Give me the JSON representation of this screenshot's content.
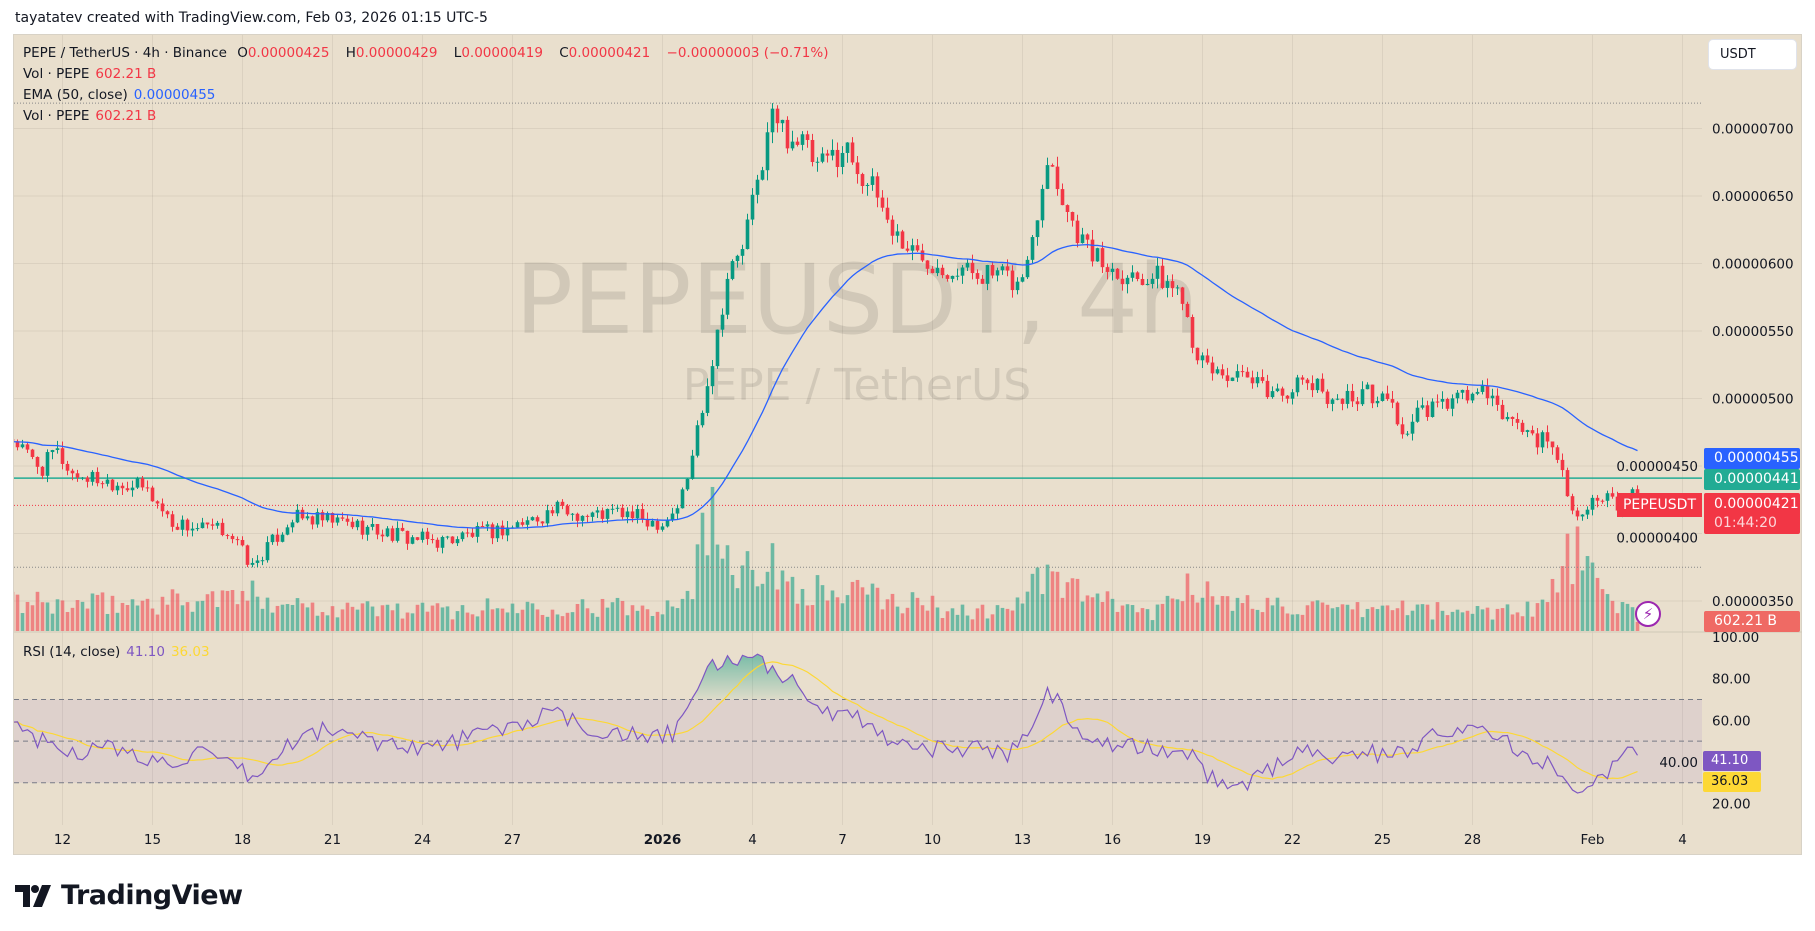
{
  "credit": "tayatatev created with TradingView.com, Feb 03, 2026 01:15 UTC-5",
  "legend": {
    "symbol": "PEPE / TetherUS · 4h · Binance",
    "o_label": "O",
    "o": "0.00000425",
    "h_label": "H",
    "h": "0.00000429",
    "l_label": "L",
    "l": "0.00000419",
    "c_label": "C",
    "c": "0.00000421",
    "change": "−0.00000003 (−0.71%)",
    "vol1_label": "Vol · PEPE",
    "vol1": "602.21 B",
    "ema_label": "EMA (50, close)",
    "ema": "0.00000455",
    "vol2_label": "Vol · PEPE",
    "vol2": "602.21 B",
    "rsi_label": "RSI (14, close)",
    "rsi": "41.10",
    "rsi_ma": "36.03"
  },
  "currency_button": "USDT",
  "watermark": {
    "title": "PEPEUSDT, 4h",
    "subtitle": "PEPE / TetherUS"
  },
  "tags": {
    "ema": "0.00000455",
    "line": "0.00000441",
    "price": "0.00000421",
    "countdown": "01:44:20",
    "symbol": "PEPEUSDT",
    "volume": "602.21 B"
  },
  "logo": "TradingView",
  "colors": {
    "up": "#089981",
    "down": "#f23645",
    "ema": "#2962ff",
    "hline": "#22ab94",
    "rsi": "#7e57c2",
    "rsi_ma": "#fdd835",
    "background": "#e9dfcd"
  },
  "icons": {
    "lightning": "lightning-icon",
    "logo": "tradingview-logo-icon"
  },
  "chart_data": [
    {
      "type": "candlestick",
      "title": "PEPE / TetherUS · 4h · Binance",
      "price_axis_labels": [
        "0.00000700",
        "0.00000650",
        "0.00000600",
        "0.00000550",
        "0.00000500",
        "0.00000450",
        "0.00000400",
        "0.00000350"
      ],
      "ylim": [
        3.3e-06,
        7.5e-06
      ],
      "time_axis_labels": [
        {
          "date": "2025-12-12",
          "label": "12"
        },
        {
          "date": "2025-12-15",
          "label": "15"
        },
        {
          "date": "2025-12-18",
          "label": "18"
        },
        {
          "date": "2025-12-21",
          "label": "21"
        },
        {
          "date": "2025-12-24",
          "label": "24"
        },
        {
          "date": "2025-12-27",
          "label": "27"
        },
        {
          "date": "2026-01-01",
          "label": "2026"
        },
        {
          "date": "2026-01-04",
          "label": "4"
        },
        {
          "date": "2026-01-07",
          "label": "7"
        },
        {
          "date": "2026-01-10",
          "label": "10"
        },
        {
          "date": "2026-01-13",
          "label": "13"
        },
        {
          "date": "2026-01-16",
          "label": "16"
        },
        {
          "date": "2026-01-19",
          "label": "19"
        },
        {
          "date": "2026-01-22",
          "label": "22"
        },
        {
          "date": "2026-01-25",
          "label": "25"
        },
        {
          "date": "2026-01-28",
          "label": "28"
        },
        {
          "date": "2026-02-01",
          "label": "Feb"
        },
        {
          "date": "2026-02-04",
          "label": "4"
        }
      ],
      "close_path": [
        [
          "2025-12-10T08",
          470
        ],
        [
          "2025-12-10T20",
          458
        ],
        [
          "2025-12-11T08",
          448
        ],
        [
          "2025-12-11T18",
          462
        ],
        [
          "2025-12-12T08",
          444
        ],
        [
          "2025-12-13T12",
          439
        ],
        [
          "2025-12-14T12",
          435
        ],
        [
          "2025-12-14T20",
          432
        ],
        [
          "2025-12-15T04",
          422
        ],
        [
          "2025-12-15T16",
          408
        ],
        [
          "2025-12-16T12",
          404
        ],
        [
          "2025-12-17T12",
          402
        ],
        [
          "2025-12-17T20",
          392
        ],
        [
          "2025-12-18T08",
          375
        ],
        [
          "2025-12-18T16",
          385
        ],
        [
          "2025-12-19T04",
          398
        ],
        [
          "2025-12-19T16",
          412
        ],
        [
          "2025-12-20T12",
          410
        ],
        [
          "2025-12-21T12",
          408
        ],
        [
          "2025-12-22T12",
          402
        ],
        [
          "2025-12-23T12",
          397
        ],
        [
          "2025-12-24T12",
          394
        ],
        [
          "2025-12-25T12",
          399
        ],
        [
          "2025-12-26T12",
          402
        ],
        [
          "2025-12-27T12",
          409
        ],
        [
          "2025-12-28T12",
          418
        ],
        [
          "2025-12-29T12",
          413
        ],
        [
          "2025-12-30T12",
          416
        ],
        [
          "2025-12-31T12",
          410
        ],
        [
          "2026-01-01T00",
          408
        ],
        [
          "2026-01-01T12",
          420
        ],
        [
          "2026-01-01T20",
          440
        ],
        [
          "2026-01-02T04",
          478
        ],
        [
          "2026-01-02T16",
          530
        ],
        [
          "2026-01-03T04",
          590
        ],
        [
          "2026-01-03T16",
          612
        ],
        [
          "2026-01-04T04",
          660
        ],
        [
          "2026-01-04T16",
          710
        ],
        [
          "2026-01-05T04",
          695
        ],
        [
          "2026-01-05T16",
          690
        ],
        [
          "2026-01-06T04",
          670
        ],
        [
          "2026-01-06T16",
          680
        ],
        [
          "2026-01-07T04",
          685
        ],
        [
          "2026-01-07T16",
          665
        ],
        [
          "2026-01-08T04",
          650
        ],
        [
          "2026-01-08T16",
          625
        ],
        [
          "2026-01-09T04",
          612
        ],
        [
          "2026-01-09T16",
          605
        ],
        [
          "2026-01-10T12",
          597
        ],
        [
          "2026-01-11T12",
          594
        ],
        [
          "2026-01-12T12",
          589
        ],
        [
          "2026-01-12T20",
          584
        ],
        [
          "2026-01-13T04",
          600
        ],
        [
          "2026-01-13T12",
          640
        ],
        [
          "2026-01-13T20",
          682
        ],
        [
          "2026-01-14T04",
          660
        ],
        [
          "2026-01-14T16",
          630
        ],
        [
          "2026-01-15T04",
          612
        ],
        [
          "2026-01-15T16",
          600
        ],
        [
          "2026-01-16T12",
          592
        ],
        [
          "2026-01-17T12",
          590
        ],
        [
          "2026-01-18T08",
          578
        ],
        [
          "2026-01-18T16",
          545
        ],
        [
          "2026-01-19T00",
          525
        ],
        [
          "2026-01-19T12",
          520
        ],
        [
          "2026-01-20T12",
          512
        ],
        [
          "2026-01-21T12",
          504
        ],
        [
          "2026-01-22T12",
          512
        ],
        [
          "2026-01-23T12",
          499
        ],
        [
          "2026-01-24T12",
          504
        ],
        [
          "2026-01-25T08",
          497
        ],
        [
          "2026-01-25T16",
          472
        ],
        [
          "2026-01-26T04",
          488
        ],
        [
          "2026-01-27T12",
          500
        ],
        [
          "2026-01-28T08",
          505
        ],
        [
          "2026-01-28T16",
          495
        ],
        [
          "2026-01-29T12",
          480
        ],
        [
          "2026-01-30T12",
          466
        ],
        [
          "2026-01-31T00",
          450
        ],
        [
          "2026-01-31T08",
          415
        ],
        [
          "2026-01-31T16",
          420
        ],
        [
          "2026-02-01T12",
          425
        ],
        [
          "2026-02-02T00",
          418
        ],
        [
          "2026-02-02T08",
          428
        ],
        [
          "2026-02-02T14",
          421
        ]
      ],
      "close_path_unit": "1e-8 USDT",
      "ema_50_last": 4.55e-06,
      "horizontal_line": 4.41e-06,
      "last_close": 4.21e-06
    },
    {
      "type": "bar",
      "title": "Vol · PEPE",
      "unit": "B",
      "volume_path": [
        [
          "2025-12-10T12",
          1500
        ],
        [
          "2025-12-12T12",
          1400
        ],
        [
          "2025-12-15T12",
          1600
        ],
        [
          "2025-12-18T12",
          1900
        ],
        [
          "2025-12-20T12",
          1300
        ],
        [
          "2025-12-24T12",
          1100
        ],
        [
          "2025-12-28T12",
          1400
        ],
        [
          "2025-12-31T12",
          1200
        ],
        [
          "2026-01-01T20",
          2000
        ],
        [
          "2026-01-02T12",
          6000
        ],
        [
          "2026-01-03T12",
          4200
        ],
        [
          "2026-01-04T12",
          3500
        ],
        [
          "2026-01-05T12",
          2500
        ],
        [
          "2026-01-06T12",
          2000
        ],
        [
          "2026-01-07T12",
          2000
        ],
        [
          "2026-01-08T12",
          1700
        ],
        [
          "2026-01-09T12",
          1500
        ],
        [
          "2026-01-10T12",
          1200
        ],
        [
          "2026-01-11T12",
          1000
        ],
        [
          "2026-01-12T12",
          1200
        ],
        [
          "2026-01-13T16",
          2800
        ],
        [
          "2026-01-14T12",
          2400
        ],
        [
          "2026-01-15T12",
          1600
        ],
        [
          "2026-01-17T12",
          1000
        ],
        [
          "2026-01-18T16",
          3000
        ],
        [
          "2026-01-19T12",
          1400
        ],
        [
          "2026-01-21T12",
          1500
        ],
        [
          "2026-01-23T12",
          1000
        ],
        [
          "2026-01-25T12",
          1300
        ],
        [
          "2026-01-27T12",
          1000
        ],
        [
          "2026-01-29T12",
          1200
        ],
        [
          "2026-01-30T12",
          1500
        ],
        [
          "2026-01-31T08",
          4500
        ],
        [
          "2026-02-01T12",
          1500
        ],
        [
          "2026-02-02T08",
          1200
        ],
        [
          "2026-02-02T14",
          602.21
        ]
      ],
      "last": 602.21
    },
    {
      "type": "line",
      "title": "RSI (14, close)",
      "ylim": [
        10,
        100
      ],
      "axis_labels": [
        "100.00",
        "80.00",
        "60.00",
        "40.00",
        "20.00"
      ],
      "bands": [
        70,
        50,
        30
      ],
      "rsi_path": [
        [
          "2025-12-10T12",
          58
        ],
        [
          "2025-12-11T12",
          48
        ],
        [
          "2025-12-12T12",
          45
        ],
        [
          "2025-12-13T12",
          47
        ],
        [
          "2025-12-14T12",
          42
        ],
        [
          "2025-12-15T12",
          40
        ],
        [
          "2025-12-16T12",
          44
        ],
        [
          "2025-12-17T12",
          38
        ],
        [
          "2025-12-18T12",
          32
        ],
        [
          "2025-12-19T12",
          48
        ],
        [
          "2025-12-20T12",
          55
        ],
        [
          "2025-12-21T12",
          54
        ],
        [
          "2025-12-22T12",
          50
        ],
        [
          "2025-12-23T12",
          48
        ],
        [
          "2025-12-24T12",
          47
        ],
        [
          "2025-12-25T12",
          52
        ],
        [
          "2025-12-26T12",
          55
        ],
        [
          "2025-12-27T12",
          60
        ],
        [
          "2025-12-28T12",
          63
        ],
        [
          "2025-12-29T12",
          55
        ],
        [
          "2025-12-30T12",
          55
        ],
        [
          "2025-12-31T12",
          50
        ],
        [
          "2026-01-01T12",
          55
        ],
        [
          "2026-01-02T12",
          85
        ],
        [
          "2026-01-03T12",
          90
        ],
        [
          "2026-01-04T12",
          86
        ],
        [
          "2026-01-05T12",
          78
        ],
        [
          "2026-01-06T12",
          62
        ],
        [
          "2026-01-07T12",
          62
        ],
        [
          "2026-01-08T12",
          52
        ],
        [
          "2026-01-09T12",
          47
        ],
        [
          "2026-01-10T12",
          46
        ],
        [
          "2026-01-11T12",
          47
        ],
        [
          "2026-01-12T12",
          44
        ],
        [
          "2026-01-13T04",
          55
        ],
        [
          "2026-01-13T20",
          77
        ],
        [
          "2026-01-14T12",
          60
        ],
        [
          "2026-01-15T12",
          50
        ],
        [
          "2026-01-16T12",
          47
        ],
        [
          "2026-01-17T12",
          46
        ],
        [
          "2026-01-18T12",
          44
        ],
        [
          "2026-01-19T12",
          30
        ],
        [
          "2026-01-20T12",
          30
        ],
        [
          "2026-01-21T12",
          38
        ],
        [
          "2026-01-22T12",
          47
        ],
        [
          "2026-01-23T12",
          42
        ],
        [
          "2026-01-24T12",
          45
        ],
        [
          "2026-01-25T12",
          43
        ],
        [
          "2026-01-26T12",
          53
        ],
        [
          "2026-01-27T12",
          57
        ],
        [
          "2026-01-28T12",
          55
        ],
        [
          "2026-01-29T12",
          45
        ],
        [
          "2026-01-30T12",
          40
        ],
        [
          "2026-01-31T12",
          28
        ],
        [
          "2026-02-01T12",
          36
        ],
        [
          "2026-02-02T04",
          46
        ],
        [
          "2026-02-02T14",
          41.1
        ]
      ],
      "rsi_last": 41.1,
      "rsi_ma_last": 36.03
    }
  ]
}
